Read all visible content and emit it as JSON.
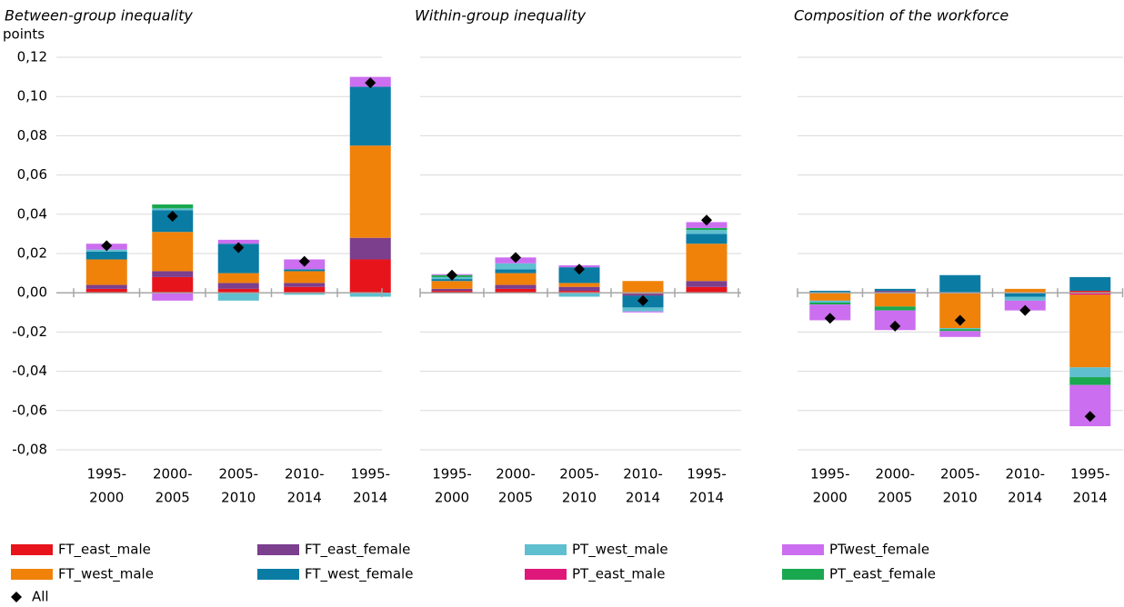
{
  "chart_data": {
    "type": "bar",
    "stacked": true,
    "ylabel": "points",
    "ylim": [
      -0.08,
      0.12
    ],
    "yticks": [
      {
        "value": -0.08,
        "label": "-0,08"
      },
      {
        "value": -0.06,
        "label": "-0,06"
      },
      {
        "value": -0.04,
        "label": "-0,04"
      },
      {
        "value": -0.02,
        "label": "-0,02"
      },
      {
        "value": 0,
        "label": "0,00"
      },
      {
        "value": 0.02,
        "label": "0,02"
      },
      {
        "value": 0.04,
        "label": "0,04"
      },
      {
        "value": 0.06,
        "label": "0,06"
      },
      {
        "value": 0.08,
        "label": "0,08"
      },
      {
        "value": 0.1,
        "label": "0,10"
      },
      {
        "value": 0.12,
        "label": "0,12"
      }
    ],
    "grid": true,
    "panels": [
      {
        "title": "Between-group inequality",
        "categories": [
          [
            "1995-",
            "2000"
          ],
          [
            "2000-",
            "2005"
          ],
          [
            "2005-",
            "2010"
          ],
          [
            "2010-",
            "2014"
          ],
          [
            "1995-",
            "2014"
          ]
        ]
      },
      {
        "title": "Within-group inequality",
        "categories": [
          [
            "1995-",
            "2000"
          ],
          [
            "2000-",
            "2005"
          ],
          [
            "2005-",
            "2010"
          ],
          [
            "2010-",
            "2014"
          ],
          [
            "1995-",
            "2014"
          ]
        ]
      },
      {
        "title": "Composition of the workforce",
        "categories": [
          [
            "1995-",
            "2000"
          ],
          [
            "2000-",
            "2005"
          ],
          [
            "2005-",
            "2010"
          ],
          [
            "2010-",
            "2014"
          ],
          [
            "1995-",
            "2014"
          ]
        ]
      }
    ],
    "series": [
      {
        "name": "FT_east_male",
        "color": "#e8141c",
        "values": [
          [
            0.002,
            0.008,
            0.002,
            0.003,
            0.017
          ],
          [
            0.001,
            0.002,
            0.001,
            -0.0005,
            0.003
          ],
          [
            0,
            0,
            0,
            0,
            0.001
          ]
        ]
      },
      {
        "name": "FT_east_female",
        "color": "#7b3f8e",
        "values": [
          [
            0.002,
            0.003,
            0.003,
            0.002,
            0.011
          ],
          [
            0.001,
            0.002,
            0.002,
            -0.001,
            0.003
          ],
          [
            0,
            0.001,
            0,
            0,
            0
          ]
        ]
      },
      {
        "name": "PT_east_male",
        "color": "#e0177a",
        "values": [
          [
            0,
            0,
            0,
            0,
            0
          ],
          [
            0,
            0,
            0,
            0,
            0
          ],
          [
            0,
            0,
            0,
            0,
            -0.001
          ]
        ]
      },
      {
        "name": "FT_west_male",
        "color": "#f0820a",
        "values": [
          [
            0.013,
            0.02,
            0.005,
            0.006,
            0.047
          ],
          [
            0.004,
            0.006,
            0.002,
            0.006,
            0.019
          ],
          [
            -0.004,
            -0.007,
            -0.018,
            0.002,
            -0.037
          ]
        ]
      },
      {
        "name": "FT_west_female",
        "color": "#0a7ca4",
        "values": [
          [
            0.004,
            0.011,
            0.015,
            0.001,
            0.03
          ],
          [
            0.001,
            0.002,
            0.008,
            -0.006,
            0.005
          ],
          [
            0.001,
            0.001,
            0.009,
            -0.002,
            0.007
          ]
        ]
      },
      {
        "name": "PT_west_male",
        "color": "#5fbfcf",
        "values": [
          [
            0.001,
            0.001,
            -0.004,
            -0.001,
            -0.002
          ],
          [
            0.001,
            0.003,
            -0.002,
            -0.002,
            0.002
          ],
          [
            -0.001,
            0,
            -0.0005,
            -0.002,
            -0.005
          ]
        ]
      },
      {
        "name": "PT_east_female",
        "color": "#1aa84f",
        "values": [
          [
            0,
            0.002,
            0,
            0,
            0
          ],
          [
            0.001,
            0,
            0,
            0,
            0.001
          ],
          [
            -0.001,
            -0.002,
            -0.001,
            0,
            -0.004
          ]
        ]
      },
      {
        "name": "PTwest_female",
        "color": "#cc6ef0",
        "values": [
          [
            0.003,
            -0.004,
            0.002,
            0.005,
            0.005
          ],
          [
            0.0005,
            0.003,
            0.001,
            -0.0005,
            0.003
          ],
          [
            -0.008,
            -0.01,
            -0.003,
            -0.005,
            -0.021
          ]
        ]
      },
      {
        "name": "All",
        "type": "scatter",
        "marker": "diamond",
        "color": "#000000",
        "values": [
          [
            0.024,
            0.039,
            0.023,
            0.016,
            0.107
          ],
          [
            0.009,
            0.018,
            0.012,
            -0.004,
            0.037
          ],
          [
            -0.013,
            -0.017,
            -0.014,
            -0.009,
            -0.063
          ]
        ]
      }
    ]
  }
}
